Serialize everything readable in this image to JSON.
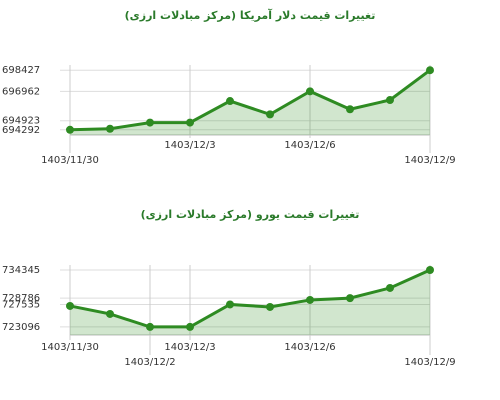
{
  "chart_data": [
    {
      "type": "line",
      "title": "تغییرات قیمت دلار آمریکا (مرکز مبادلات ارزی)",
      "categories": [
        "1403/11/30",
        null,
        null,
        "1403/12/3",
        null,
        null,
        "1403/12/6",
        null,
        null,
        "1403/12/9"
      ],
      "values": [
        694292,
        694363,
        694791,
        694791,
        696288,
        695361,
        696962,
        695718,
        696359,
        698427
      ],
      "color": "#2e8b22",
      "ylim": [
        693930,
        698790
      ],
      "yticks": [
        694292,
        694923,
        696962,
        698427
      ],
      "grid": true
    },
    {
      "type": "line",
      "title": "تغییرات قیمت یورو (مرکز مبادلات ارزی)",
      "categories": [
        "1403/11/30",
        null,
        "1403/12/2",
        "1403/12/3",
        null,
        null,
        "1403/12/6",
        null,
        null,
        "1403/12/9"
      ],
      "values": [
        727238,
        725660,
        723096,
        723096,
        727535,
        727041,
        728423,
        728786,
        730792,
        734345
      ],
      "color": "#2e8b22",
      "ylim": [
        721500,
        735330
      ],
      "yticks": [
        723096,
        727535,
        728786,
        734345
      ],
      "grid": true
    }
  ]
}
